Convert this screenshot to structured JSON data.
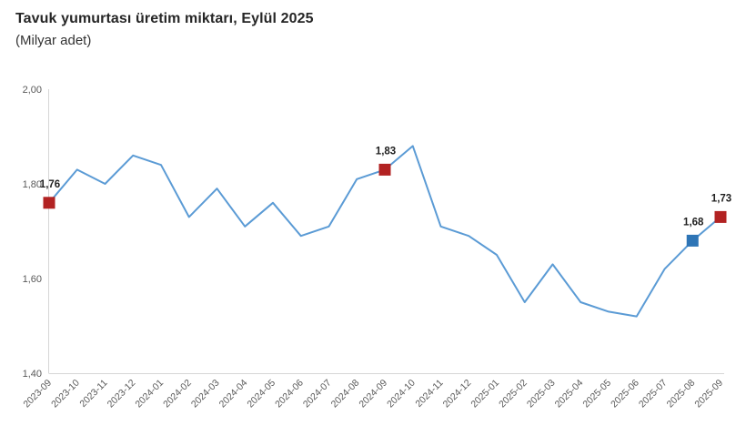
{
  "header": {
    "title": "Tavuk yumurtası üretim miktarı, Eylül 2025",
    "subtitle": "(Milyar adet)"
  },
  "chart_data": {
    "type": "line",
    "title": "Tavuk yumurtası üretim miktarı, Eylül 2025",
    "subtitle": "(Milyar adet)",
    "xlabel": "",
    "ylabel": "Milyar adet",
    "grid": false,
    "legend_position": "none",
    "ylim": [
      1.4,
      2.0
    ],
    "line_color": "#5B9BD5",
    "axis_color": "#D6D6D6",
    "tick_text_color": "#595959",
    "data_label_color": "#1f1f1f",
    "yticks": [
      {
        "v": 2.0,
        "label": "2,00"
      },
      {
        "v": 1.8,
        "label": "1,80"
      },
      {
        "v": 1.6,
        "label": "1,60"
      },
      {
        "v": 1.4,
        "label": "1,40"
      }
    ],
    "categories": [
      "2023-09",
      "2023-10",
      "2023-11",
      "2023-12",
      "2024-01",
      "2024-02",
      "2024-03",
      "2024-04",
      "2024-05",
      "2024-06",
      "2024-07",
      "2024-08",
      "2024-09",
      "2024-10",
      "2024-11",
      "2024-12",
      "2025-01",
      "2025-02",
      "2025-03",
      "2025-04",
      "2025-05",
      "2025-06",
      "2025-07",
      "2025-08",
      "2025-09"
    ],
    "values": [
      1.76,
      1.83,
      1.8,
      1.86,
      1.84,
      1.73,
      1.79,
      1.71,
      1.76,
      1.69,
      1.71,
      1.81,
      1.83,
      1.88,
      1.71,
      1.69,
      1.65,
      1.55,
      1.63,
      1.55,
      1.53,
      1.52,
      1.62,
      1.68,
      1.73
    ],
    "markers": [
      {
        "index": 0,
        "category": "2023-09",
        "label": "1,76",
        "color": "#B22222"
      },
      {
        "index": 12,
        "category": "2024-09",
        "label": "1,83",
        "color": "#B22222"
      },
      {
        "index": 23,
        "category": "2025-08",
        "label": "1,68",
        "color": "#2E75B6"
      },
      {
        "index": 24,
        "category": "2025-09",
        "label": "1,73",
        "color": "#B22222"
      }
    ]
  }
}
